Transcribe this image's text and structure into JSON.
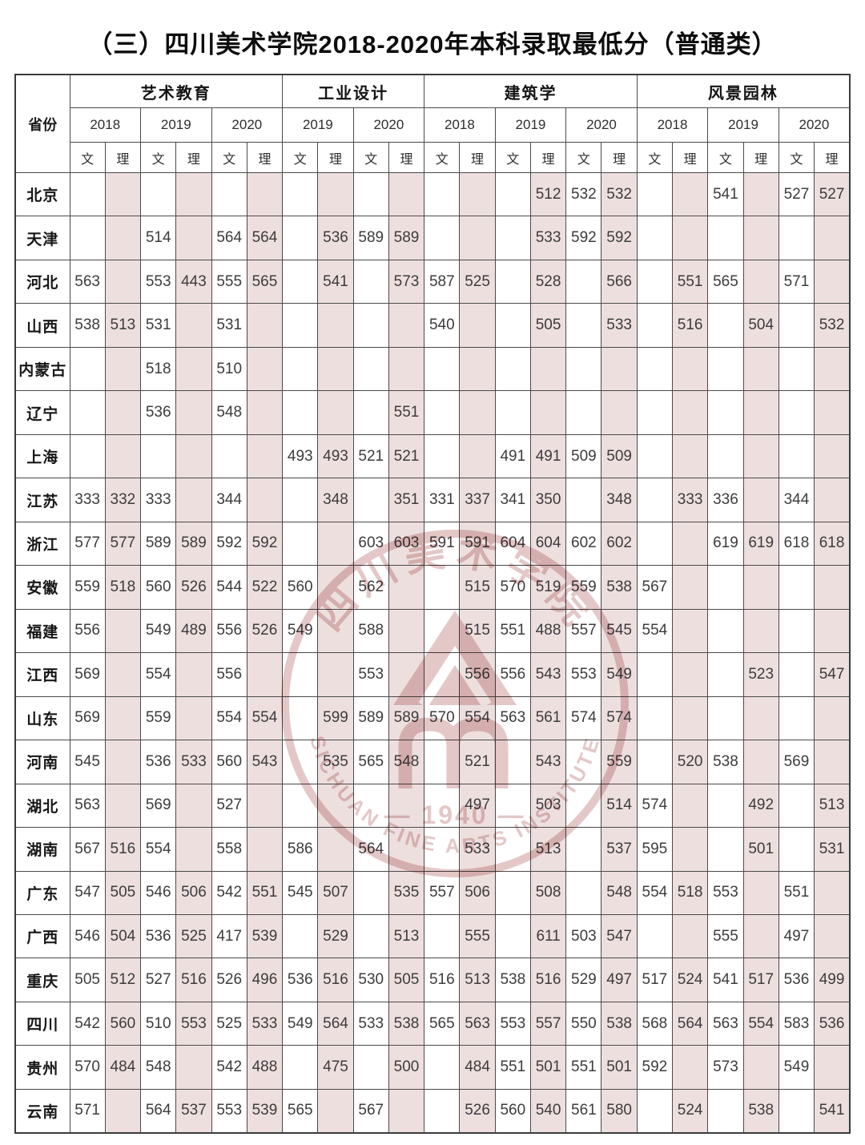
{
  "title": {
    "main": "（三）四川美术学院2018-2020年本科录取最低分",
    "category": "（普通类）"
  },
  "watermark": {
    "chinese_label": "四川美术学院",
    "year_label": "— 1940 —",
    "english_label": "SICHUAN FINE ARTS INSTITUTE"
  },
  "colors": {
    "li_column_bg": "#eedfdf",
    "watermark_pink": "#c98f8f",
    "grid_line": "#4a4a4a",
    "text": "#3c3c3c"
  },
  "table": {
    "province_header": "省份",
    "track_labels": {
      "wen": "文",
      "li": "理"
    },
    "groups": [
      {
        "label": "艺术教育",
        "years": [
          "2018",
          "2019",
          "2020"
        ]
      },
      {
        "label": "工业设计",
        "years": [
          "2019",
          "2020"
        ]
      },
      {
        "label": "建筑学",
        "years": [
          "2018",
          "2019",
          "2020"
        ]
      },
      {
        "label": "风景园林",
        "years": [
          "2018",
          "2019",
          "2020"
        ]
      }
    ],
    "rows": [
      {
        "province": "北京",
        "values": [
          "",
          "",
          "",
          "",
          "",
          "",
          "",
          "",
          "",
          "",
          "",
          "",
          "",
          "512",
          "532",
          "532",
          "",
          "",
          "541",
          "",
          "527",
          "527"
        ]
      },
      {
        "province": "天津",
        "values": [
          "",
          "",
          "514",
          "",
          "564",
          "564",
          "",
          "536",
          "589",
          "589",
          "",
          "",
          "",
          "533",
          "592",
          "592",
          "",
          "",
          "",
          "",
          "",
          ""
        ]
      },
      {
        "province": "河北",
        "values": [
          "563",
          "",
          "553",
          "443",
          "555",
          "565",
          "",
          "541",
          "",
          "573",
          "587",
          "525",
          "",
          "528",
          "",
          "566",
          "",
          "551",
          "565",
          "",
          "571",
          ""
        ]
      },
      {
        "province": "山西",
        "values": [
          "538",
          "513",
          "531",
          "",
          "531",
          "",
          "",
          "",
          "",
          "",
          "540",
          "",
          "",
          "505",
          "",
          "533",
          "",
          "516",
          "",
          "504",
          "",
          "532"
        ]
      },
      {
        "province": "内蒙古",
        "values": [
          "",
          "",
          "518",
          "",
          "510",
          "",
          "",
          "",
          "",
          "",
          "",
          "",
          "",
          "",
          "",
          "",
          "",
          "",
          "",
          "",
          "",
          ""
        ]
      },
      {
        "province": "辽宁",
        "values": [
          "",
          "",
          "536",
          "",
          "548",
          "",
          "",
          "",
          "",
          "551",
          "",
          "",
          "",
          "",
          "",
          "",
          "",
          "",
          "",
          "",
          "",
          ""
        ]
      },
      {
        "province": "上海",
        "values": [
          "",
          "",
          "",
          "",
          "",
          "",
          "493",
          "493",
          "521",
          "521",
          "",
          "",
          "491",
          "491",
          "509",
          "509",
          "",
          "",
          "",
          "",
          "",
          ""
        ]
      },
      {
        "province": "江苏",
        "values": [
          "333",
          "332",
          "333",
          "",
          "344",
          "",
          "",
          "348",
          "",
          "351",
          "331",
          "337",
          "341",
          "350",
          "",
          "348",
          "",
          "333",
          "336",
          "",
          "344",
          ""
        ]
      },
      {
        "province": "浙江",
        "values": [
          "577",
          "577",
          "589",
          "589",
          "592",
          "592",
          "",
          "",
          "603",
          "603",
          "591",
          "591",
          "604",
          "604",
          "602",
          "602",
          "",
          "",
          "619",
          "619",
          "618",
          "618"
        ]
      },
      {
        "province": "安徽",
        "values": [
          "559",
          "518",
          "560",
          "526",
          "544",
          "522",
          "560",
          "",
          "562",
          "",
          "",
          "515",
          "570",
          "519",
          "559",
          "538",
          "567",
          "",
          "",
          "",
          "",
          ""
        ]
      },
      {
        "province": "福建",
        "values": [
          "556",
          "",
          "549",
          "489",
          "556",
          "526",
          "549",
          "",
          "588",
          "",
          "",
          "515",
          "551",
          "488",
          "557",
          "545",
          "554",
          "",
          "",
          "",
          "",
          ""
        ]
      },
      {
        "province": "江西",
        "values": [
          "569",
          "",
          "554",
          "",
          "556",
          "",
          "",
          "",
          "553",
          "",
          "",
          "556",
          "556",
          "543",
          "553",
          "549",
          "",
          "",
          "",
          "523",
          "",
          "547"
        ]
      },
      {
        "province": "山东",
        "values": [
          "569",
          "",
          "559",
          "",
          "554",
          "554",
          "",
          "599",
          "589",
          "589",
          "570",
          "554",
          "563",
          "561",
          "574",
          "574",
          "",
          "",
          "",
          "",
          "",
          ""
        ]
      },
      {
        "province": "河南",
        "values": [
          "545",
          "",
          "536",
          "533",
          "560",
          "543",
          "",
          "535",
          "565",
          "548",
          "",
          "521",
          "",
          "543",
          "",
          "559",
          "",
          "520",
          "538",
          "",
          "569",
          ""
        ]
      },
      {
        "province": "湖北",
        "values": [
          "563",
          "",
          "569",
          "",
          "527",
          "",
          "",
          "",
          "",
          "",
          "",
          "497",
          "",
          "503",
          "",
          "514",
          "574",
          "",
          "",
          "492",
          "",
          "513"
        ]
      },
      {
        "province": "湖南",
        "values": [
          "567",
          "516",
          "554",
          "",
          "558",
          "",
          "586",
          "",
          "564",
          "",
          "",
          "533",
          "",
          "513",
          "",
          "537",
          "595",
          "",
          "",
          "501",
          "",
          "531"
        ]
      },
      {
        "province": "广东",
        "values": [
          "547",
          "505",
          "546",
          "506",
          "542",
          "551",
          "545",
          "507",
          "",
          "535",
          "557",
          "506",
          "",
          "508",
          "",
          "548",
          "554",
          "518",
          "553",
          "",
          "551",
          ""
        ]
      },
      {
        "province": "广西",
        "values": [
          "546",
          "504",
          "536",
          "525",
          "417",
          "539",
          "",
          "529",
          "",
          "513",
          "",
          "555",
          "",
          "611",
          "503",
          "547",
          "",
          "",
          "555",
          "",
          "497",
          ""
        ]
      },
      {
        "province": "重庆",
        "values": [
          "505",
          "512",
          "527",
          "516",
          "526",
          "496",
          "536",
          "516",
          "530",
          "505",
          "516",
          "513",
          "538",
          "516",
          "529",
          "497",
          "517",
          "524",
          "541",
          "517",
          "536",
          "499"
        ]
      },
      {
        "province": "四川",
        "values": [
          "542",
          "560",
          "510",
          "553",
          "525",
          "533",
          "549",
          "564",
          "533",
          "538",
          "565",
          "563",
          "553",
          "557",
          "550",
          "538",
          "568",
          "564",
          "563",
          "554",
          "583",
          "536"
        ]
      },
      {
        "province": "贵州",
        "values": [
          "570",
          "484",
          "548",
          "",
          "542",
          "488",
          "",
          "475",
          "",
          "500",
          "",
          "484",
          "551",
          "501",
          "551",
          "501",
          "592",
          "",
          "573",
          "",
          "549",
          ""
        ]
      },
      {
        "province": "云南",
        "values": [
          "571",
          "",
          "564",
          "537",
          "553",
          "539",
          "565",
          "",
          "567",
          "",
          "",
          "526",
          "560",
          "540",
          "561",
          "580",
          "",
          "524",
          "",
          "538",
          "",
          "541"
        ]
      }
    ]
  }
}
